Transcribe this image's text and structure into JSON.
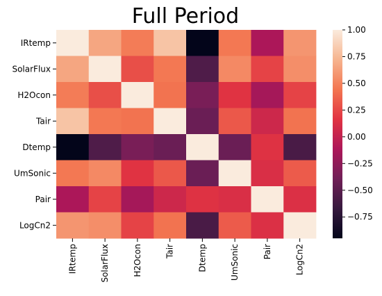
{
  "chart_data": {
    "type": "heatmap",
    "title": "Full Period",
    "rows": [
      "IRtemp",
      "SolarFlux",
      "H2Ocon",
      "Tair",
      "Dtemp",
      "UmSonic",
      "Pair",
      "LogCn2"
    ],
    "columns": [
      "IRtemp",
      "SolarFlux",
      "H2Ocon",
      "Tair",
      "Dtemp",
      "UmSonic",
      "Pair",
      "LogCn2"
    ],
    "values": [
      [
        1.0,
        0.66,
        0.47,
        0.8,
        -0.95,
        0.45,
        -0.12,
        0.58
      ],
      [
        0.66,
        1.0,
        0.28,
        0.45,
        -0.55,
        0.53,
        0.23,
        0.55
      ],
      [
        0.47,
        0.28,
        1.0,
        0.43,
        -0.35,
        0.16,
        -0.15,
        0.23
      ],
      [
        0.8,
        0.45,
        0.43,
        1.0,
        -0.42,
        0.32,
        0.05,
        0.43
      ],
      [
        -0.95,
        -0.55,
        -0.35,
        -0.42,
        1.0,
        -0.42,
        0.15,
        -0.58
      ],
      [
        0.45,
        0.53,
        0.16,
        0.32,
        -0.42,
        1.0,
        0.12,
        0.33
      ],
      [
        -0.12,
        0.23,
        -0.15,
        0.05,
        0.15,
        0.12,
        1.0,
        0.13
      ],
      [
        0.58,
        0.55,
        0.23,
        0.43,
        -0.58,
        0.33,
        0.13,
        1.0
      ]
    ],
    "colorbar": {
      "range": [
        -0.95,
        1.0
      ],
      "ticks": [
        "1.00",
        "0.75",
        "0.50",
        "0.25",
        "0.00",
        "−0.25",
        "−0.50",
        "−0.75"
      ],
      "tick_values": [
        1.0,
        0.75,
        0.5,
        0.25,
        0.0,
        -0.25,
        -0.5,
        -0.75
      ],
      "colormap": "rocket",
      "colormap_stops": [
        "#03051a",
        "#36193e",
        "#701f57",
        "#ad1759",
        "#e13342",
        "#f37651",
        "#f6b48f",
        "#faebdd"
      ]
    }
  }
}
